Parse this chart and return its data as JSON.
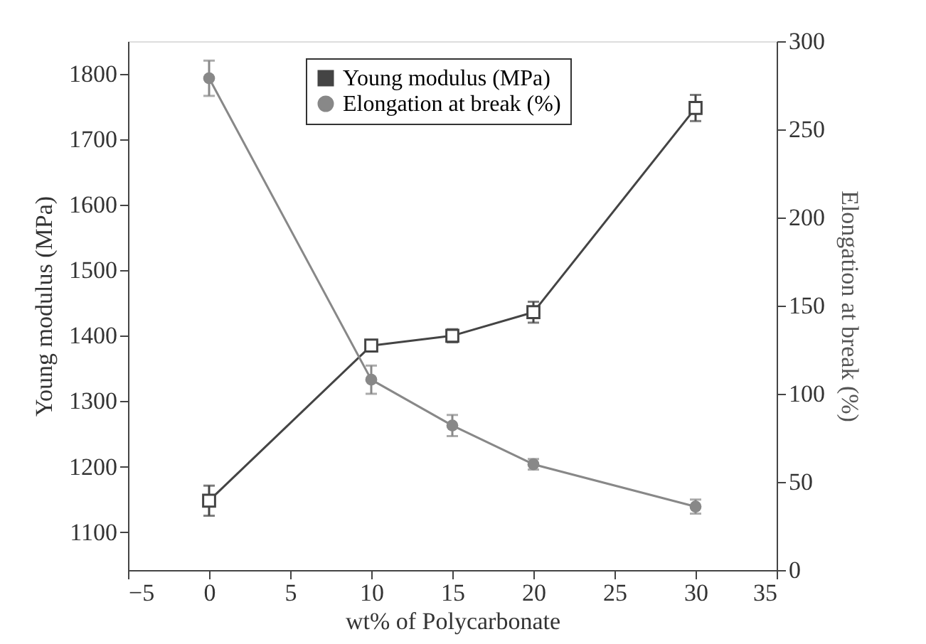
{
  "chart_data": {
    "type": "line",
    "xlabel": "wt% of Polycarbonate",
    "ylabel": "Young modulus (MPa)",
    "y2label": "Elongation at break (%)",
    "x": [
      0,
      10,
      15,
      20,
      30
    ],
    "xlim": [
      -5,
      35
    ],
    "xticks": [
      -5,
      0,
      5,
      10,
      15,
      20,
      25,
      30,
      35
    ],
    "ylim": [
      1042,
      1850
    ],
    "yticks": [
      1100,
      1200,
      1300,
      1400,
      1500,
      1600,
      1700,
      1800
    ],
    "y2lim": [
      0,
      300
    ],
    "y2ticks": [
      0,
      50,
      100,
      150,
      200,
      250,
      300
    ],
    "series": [
      {
        "name": "Young modulus (MPa)",
        "color": "#444444",
        "marker": "square",
        "values": [
          1148,
          1385,
          1400,
          1436,
          1748
        ],
        "errors": [
          23,
          6,
          10,
          16,
          20
        ]
      },
      {
        "name": "Elongation at break (%)",
        "color": "#888888",
        "marker": "circle",
        "axis": "y2",
        "values": [
          279,
          108,
          82,
          60,
          36
        ],
        "errors": [
          10,
          8,
          6,
          3,
          4
        ]
      }
    ],
    "legend": "top",
    "grid": false
  }
}
